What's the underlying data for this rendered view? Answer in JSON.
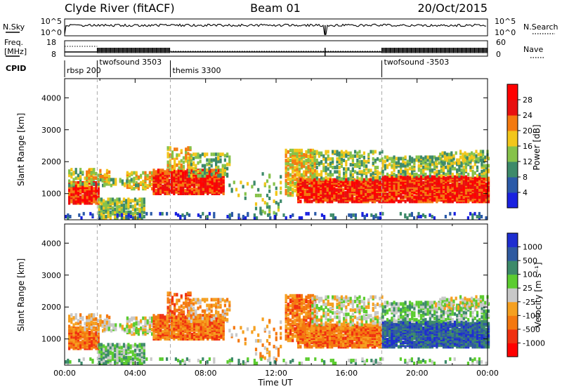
{
  "header": {
    "station": "Clyde River (fitACF)",
    "beam": "Beam 01",
    "date": "20/Oct/2015"
  },
  "top_panels": {
    "nsky_label": "N.Sky",
    "nsearch_label": "N.Search",
    "nsky_ticks": [
      "10^5",
      "10^0"
    ],
    "nsearch_ticks": [
      "10^5",
      "10^0"
    ],
    "freq_label_1": "Freq.",
    "freq_label_2": "[MHz]",
    "freq_ticks": [
      "18",
      "8"
    ],
    "nave_label": "Nave",
    "nave_ticks": [
      "60",
      "0"
    ],
    "cpid_label": "CPID",
    "cpid_segments": [
      {
        "label": "rbsp 200",
        "start_hour": 0.0
      },
      {
        "label": "twofsound 3503",
        "start_hour": 1.85
      },
      {
        "label": "themis 3300",
        "start_hour": 6.0
      },
      {
        "label": "twofsound -3503",
        "start_hour": 18.0
      }
    ]
  },
  "chart_data": [
    {
      "type": "heatmap",
      "name": "power-panel",
      "ylabel": "Slant Range [km]",
      "xlabel": "",
      "ylim": [
        180,
        4600
      ],
      "xlim_hours": [
        0,
        24
      ],
      "y_ticks": [
        1000,
        2000,
        3000,
        4000
      ],
      "colorbar": {
        "label": "Power [dB]",
        "ticks": [
          "4",
          "8",
          "12",
          "16",
          "20",
          "24",
          "28"
        ],
        "colors": [
          "#1a22e0",
          "#2b5aa8",
          "#3d8a6a",
          "#86c24a",
          "#f2c61a",
          "#f47a10",
          "#e81010",
          "#ff0000"
        ]
      }
    },
    {
      "type": "heatmap",
      "name": "velocity-panel",
      "ylabel": "Slant Range [km]",
      "xlabel": "Time UT",
      "ylim": [
        180,
        4600
      ],
      "xlim_hours": [
        0,
        24
      ],
      "y_ticks": [
        1000,
        2000,
        3000,
        4000
      ],
      "x_ticks": [
        "00:00",
        "04:00",
        "08:00",
        "12:00",
        "16:00",
        "20:00",
        "00:00"
      ],
      "colorbar": {
        "label": "Velocity [m s⁻¹]",
        "ticks": [
          "1000",
          "500",
          "100",
          "25",
          "-25",
          "-100",
          "-500",
          "-1000"
        ],
        "colors": [
          "#1e2ed0",
          "#2f5aa0",
          "#3d8a6a",
          "#5ccc30",
          "#c8c8c8",
          "#f5a020",
          "#f47810",
          "#f03010",
          "#ff0000"
        ]
      }
    }
  ]
}
